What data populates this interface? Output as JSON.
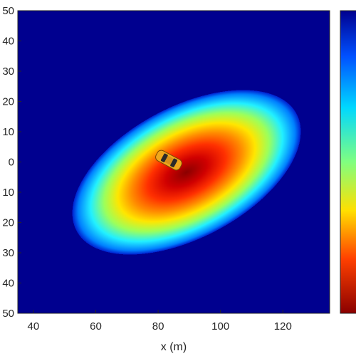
{
  "chart_data": {
    "type": "heatmap",
    "xlabel": "x (m)",
    "ylabel": "",
    "xlim": [
      35,
      135
    ],
    "ylim": [
      -50,
      50
    ],
    "x_ticks": [
      40,
      60,
      80,
      100,
      120
    ],
    "y_ticks": [
      50,
      40,
      30,
      20,
      10,
      0,
      -10,
      -20,
      -30,
      -40,
      -50
    ],
    "y_tick_labels": [
      "50",
      "40",
      "30",
      "20",
      "10",
      "0",
      "10",
      "20",
      "30",
      "40",
      "50"
    ],
    "field": {
      "shape": "elliptical",
      "peak_x": 88,
      "peak_y": -3,
      "major_axis_angle_deg": -28
    },
    "colormap": "jet",
    "colorbar": true,
    "vehicle": {
      "icon": "car-icon",
      "x": 83,
      "y": 0,
      "heading_deg": -30,
      "color": "#f0a81c"
    }
  }
}
